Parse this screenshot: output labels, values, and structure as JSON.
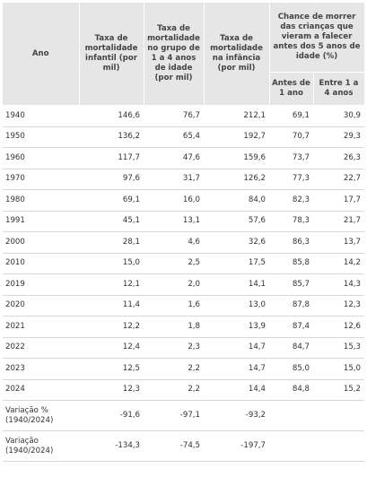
{
  "header": {
    "ano": "Ano",
    "col1": "Taxa de mortalidade infantil (por mil)",
    "col2": "Taxa de mortalidade no grupo de 1 a 4 anos de idade (por mil)",
    "col3": "Taxa de mortalidade na infância (por mil)",
    "group": "Chance de morrer das crianças que vieram a falecer antes dos 5 anos de idade (%)",
    "sub1": "Antes de 1 ano",
    "sub2": "Entre 1 a 4 anos"
  },
  "rows": [
    {
      "ano": "1940",
      "c1": "146,6",
      "c2": "76,7",
      "c3": "212,1",
      "c4": "69,1",
      "c5": "30,9"
    },
    {
      "ano": "1950",
      "c1": "136,2",
      "c2": "65,4",
      "c3": "192,7",
      "c4": "70,7",
      "c5": "29,3"
    },
    {
      "ano": "1960",
      "c1": "117,7",
      "c2": "47,6",
      "c3": "159,6",
      "c4": "73,7",
      "c5": "26,3"
    },
    {
      "ano": "1970",
      "c1": "97,6",
      "c2": "31,7",
      "c3": "126,2",
      "c4": "77,3",
      "c5": "22,7"
    },
    {
      "ano": "1980",
      "c1": "69,1",
      "c2": "16,0",
      "c3": "84,0",
      "c4": "82,3",
      "c5": "17,7"
    },
    {
      "ano": "1991",
      "c1": "45,1",
      "c2": "13,1",
      "c3": "57,6",
      "c4": "78,3",
      "c5": "21,7"
    },
    {
      "ano": "2000",
      "c1": "28,1",
      "c2": "4,6",
      "c3": "32,6",
      "c4": "86,3",
      "c5": "13,7"
    },
    {
      "ano": "2010",
      "c1": "15,0",
      "c2": "2,5",
      "c3": "17,5",
      "c4": "85,8",
      "c5": "14,2"
    },
    {
      "ano": "2019",
      "c1": "12,1",
      "c2": "2,0",
      "c3": "14,1",
      "c4": "85,7",
      "c5": "14,3"
    },
    {
      "ano": "2020",
      "c1": "11,4",
      "c2": "1,6",
      "c3": "13,0",
      "c4": "87,8",
      "c5": "12,3"
    },
    {
      "ano": "2021",
      "c1": "12,2",
      "c2": "1,8",
      "c3": "13,9",
      "c4": "87,4",
      "c5": "12,6"
    },
    {
      "ano": "2022",
      "c1": "12,4",
      "c2": "2,3",
      "c3": "14,7",
      "c4": "84,7",
      "c5": "15,3"
    },
    {
      "ano": "2023",
      "c1": "12,5",
      "c2": "2,2",
      "c3": "14,7",
      "c4": "85,0",
      "c5": "15,0"
    },
    {
      "ano": "2024",
      "c1": "12,3",
      "c2": "2,2",
      "c3": "14,4",
      "c4": "84,8",
      "c5": "15,2"
    }
  ],
  "variacao_pct": {
    "label": "Variação % (1940/2024)",
    "c1": "-91,6",
    "c2": "-97,1",
    "c3": "-93,2"
  },
  "variacao_abs": {
    "label": "Variação (1940/2024)",
    "c1": "-134,3",
    "c2": "-74,5",
    "c3": "-197,7"
  }
}
